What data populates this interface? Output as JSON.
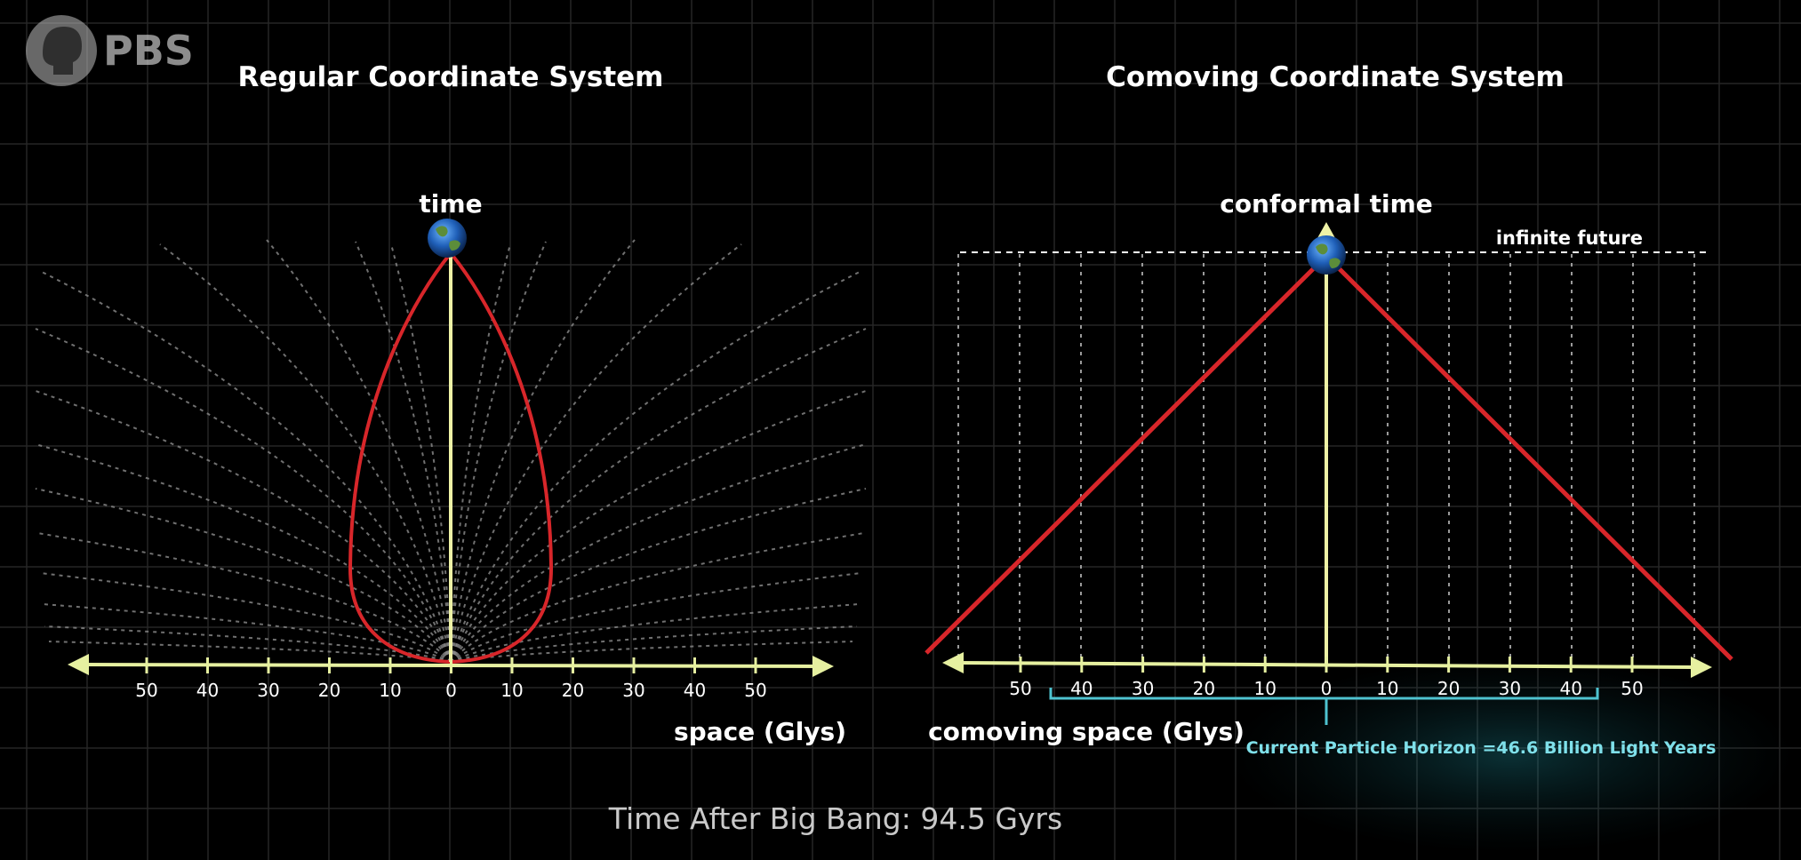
{
  "logo": {
    "text": "PBS"
  },
  "left_panel": {
    "title": "Regular Coordinate System",
    "time_label": "time",
    "space_label": "space (Glys)",
    "ticks": [
      "50",
      "40",
      "30",
      "20",
      "10",
      "0",
      "10",
      "20",
      "30",
      "40",
      "50"
    ]
  },
  "right_panel": {
    "title": "Comoving Coordinate System",
    "time_label": "conformal time",
    "infinite_future_label": "infinite future",
    "space_label": "comoving space (Glys)",
    "ticks": [
      "50",
      "40",
      "30",
      "20",
      "10",
      "0",
      "10",
      "20",
      "30",
      "40",
      "50"
    ],
    "horizon_label": "Current Particle Horizon =46.6 Billion Light Years"
  },
  "footer": {
    "time_after_big_bang": "Time After Big Bang: 94.5 Gyrs"
  },
  "colors": {
    "background": "#000000",
    "grid": "#2a2a2a",
    "axis": "#e6f0a0",
    "worldline": "#eef2a6",
    "light_cone": "#d8262a",
    "geodesics": "#8c8c8c",
    "horizon": "#4ec3d0",
    "text": "#ffffff"
  },
  "icons": {
    "observer": "earth-icon",
    "logo": "pbs-head-icon"
  }
}
